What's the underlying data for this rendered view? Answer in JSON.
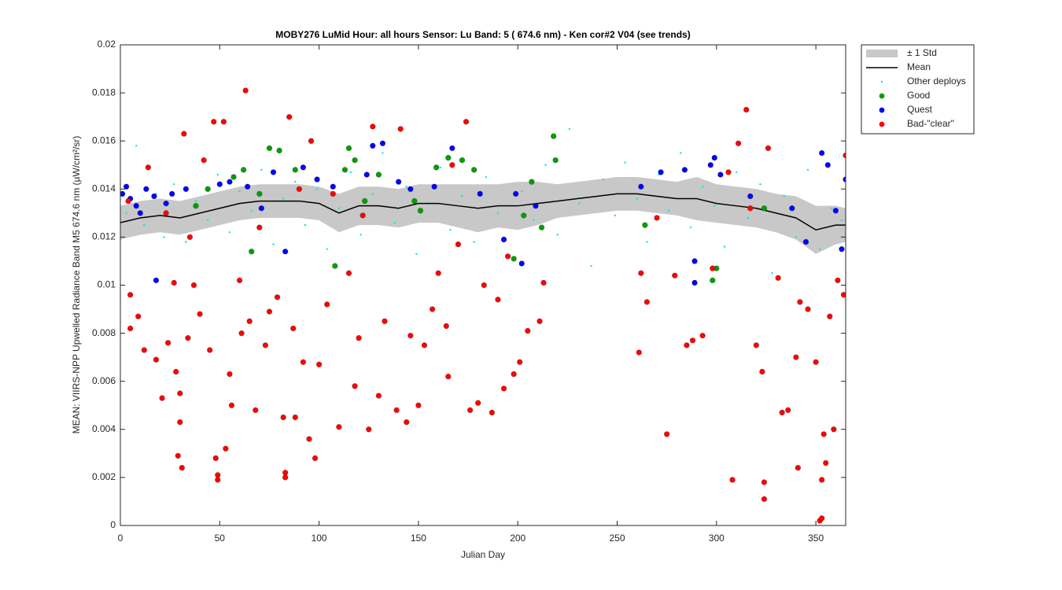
{
  "chart_data": {
    "type": "scatter",
    "title": "MOBY276   LuMid  Hour: all hours  Sensor: Lu Band: 5 ( 674.6 nm)  - Ken cor#2 V04 (see trends)",
    "x_label": "Julian Day",
    "y_label": "MEAN: VIIRS-NPP Upwelled Radiance Band M5 674.6 nm (µW/cm²/sr)",
    "xlim": [
      0,
      365
    ],
    "xticks": [
      0,
      50,
      100,
      150,
      200,
      250,
      300,
      350
    ],
    "ylim": [
      0,
      0.02
    ],
    "yticks": [
      0,
      0.002,
      0.004,
      0.006,
      0.008,
      0.01,
      0.012,
      0.014,
      0.016,
      0.018,
      0.02
    ],
    "legend": "outside-right",
    "series": [
      {
        "name": "± 1 Std",
        "marker": "band",
        "color": "#c8c8c8",
        "x": [
          0,
          10,
          20,
          30,
          40,
          50,
          60,
          70,
          80,
          90,
          100,
          110,
          120,
          130,
          140,
          150,
          160,
          170,
          180,
          190,
          200,
          210,
          220,
          230,
          240,
          250,
          260,
          270,
          280,
          290,
          300,
          310,
          320,
          330,
          340,
          350,
          360,
          365
        ],
        "lower": [
          0.0119,
          0.0121,
          0.0122,
          0.0121,
          0.0123,
          0.0125,
          0.0127,
          0.0128,
          0.0128,
          0.0128,
          0.0127,
          0.0122,
          0.0125,
          0.0125,
          0.0124,
          0.0126,
          0.0126,
          0.0124,
          0.0122,
          0.0124,
          0.0123,
          0.0125,
          0.0128,
          0.0129,
          0.013,
          0.0131,
          0.0131,
          0.013,
          0.0129,
          0.0127,
          0.0126,
          0.0125,
          0.0124,
          0.0122,
          0.0119,
          0.0113,
          0.0117,
          0.0118
        ],
        "upper": [
          0.0133,
          0.0135,
          0.0136,
          0.0135,
          0.0137,
          0.0139,
          0.0141,
          0.0142,
          0.0142,
          0.0142,
          0.0141,
          0.0138,
          0.0141,
          0.0141,
          0.014,
          0.0142,
          0.0142,
          0.0142,
          0.0142,
          0.0142,
          0.0143,
          0.0143,
          0.0142,
          0.0143,
          0.0144,
          0.0145,
          0.0145,
          0.0144,
          0.0143,
          0.0145,
          0.0142,
          0.0141,
          0.014,
          0.0138,
          0.0137,
          0.0133,
          0.0133,
          0.0132
        ]
      },
      {
        "name": "Mean",
        "marker": "line",
        "color": "#000000",
        "x": [
          0,
          10,
          20,
          30,
          40,
          50,
          60,
          70,
          80,
          90,
          100,
          110,
          120,
          130,
          140,
          150,
          160,
          170,
          180,
          190,
          200,
          210,
          220,
          230,
          240,
          250,
          260,
          270,
          280,
          290,
          300,
          310,
          320,
          330,
          340,
          350,
          360,
          365
        ],
        "y": [
          0.0126,
          0.0128,
          0.0129,
          0.0128,
          0.013,
          0.0132,
          0.0134,
          0.0135,
          0.0135,
          0.0135,
          0.0134,
          0.013,
          0.0133,
          0.0133,
          0.0132,
          0.0134,
          0.0134,
          0.0133,
          0.0132,
          0.0133,
          0.0133,
          0.0134,
          0.0135,
          0.0136,
          0.0137,
          0.0138,
          0.0138,
          0.0137,
          0.0136,
          0.0136,
          0.0134,
          0.0133,
          0.0132,
          0.013,
          0.0128,
          0.0123,
          0.0125,
          0.0125
        ]
      },
      {
        "name": "Other deploys",
        "marker": "dot",
        "color": "#00e5ee",
        "x": [
          3,
          8,
          12,
          18,
          22,
          27,
          33,
          38,
          44,
          49,
          55,
          60,
          66,
          71,
          77,
          82,
          88,
          93,
          99,
          104,
          110,
          116,
          121,
          127,
          132,
          138,
          144,
          149,
          155,
          161,
          166,
          172,
          178,
          184,
          190,
          196,
          202,
          208,
          214,
          220,
          226,
          231,
          237,
          243,
          249,
          254,
          260,
          265,
          271,
          276,
          282,
          287,
          293,
          299,
          304,
          310,
          316,
          322,
          328,
          334,
          340,
          346,
          352,
          358,
          363
        ],
        "y": [
          0.013,
          0.0158,
          0.0125,
          0.0138,
          0.012,
          0.0142,
          0.0118,
          0.0135,
          0.0127,
          0.0146,
          0.0122,
          0.0139,
          0.0131,
          0.0148,
          0.0117,
          0.0136,
          0.0143,
          0.0125,
          0.014,
          0.0115,
          0.0132,
          0.0147,
          0.0121,
          0.0138,
          0.0155,
          0.0126,
          0.0141,
          0.0113,
          0.0134,
          0.0149,
          0.0123,
          0.0137,
          0.0118,
          0.0145,
          0.013,
          0.0112,
          0.0139,
          0.0127,
          0.015,
          0.0121,
          0.0165,
          0.0134,
          0.0108,
          0.0144,
          0.0129,
          0.0151,
          0.0136,
          0.0118,
          0.0146,
          0.0131,
          0.0155,
          0.0124,
          0.0141,
          0.0133,
          0.0116,
          0.0147,
          0.0128,
          0.0142,
          0.0105,
          0.0137,
          0.012,
          0.0148,
          0.0115,
          0.0132,
          0.0127
        ]
      },
      {
        "name": "Good",
        "marker": "circle",
        "color": "#00a000",
        "x": [
          38,
          44,
          57,
          62,
          66,
          70,
          75,
          80,
          88,
          108,
          113,
          115,
          118,
          123,
          130,
          148,
          151,
          159,
          165,
          172,
          178,
          198,
          203,
          207,
          212,
          218,
          219,
          264,
          298,
          300,
          324
        ],
        "y": [
          0.0133,
          0.014,
          0.0145,
          0.0148,
          0.0114,
          0.0138,
          0.0157,
          0.0156,
          0.0148,
          0.0108,
          0.0148,
          0.0157,
          0.0152,
          0.0135,
          0.0146,
          0.0135,
          0.0131,
          0.0149,
          0.0153,
          0.0152,
          0.0148,
          0.0111,
          0.0129,
          0.0143,
          0.0124,
          0.0162,
          0.0152,
          0.0125,
          0.0102,
          0.0107,
          0.0132
        ]
      },
      {
        "name": "Quest",
        "marker": "circle",
        "color": "#0000ff",
        "x": [
          1,
          3,
          5,
          8,
          10,
          13,
          17,
          18,
          23,
          26,
          33,
          50,
          55,
          64,
          71,
          77,
          83,
          92,
          99,
          107,
          124,
          127,
          132,
          140,
          146,
          158,
          167,
          181,
          193,
          199,
          202,
          209,
          262,
          272,
          284,
          289,
          289,
          297,
          299,
          302,
          317,
          338,
          345,
          353,
          356,
          360,
          363,
          365
        ],
        "y": [
          0.0138,
          0.0141,
          0.0136,
          0.0133,
          0.013,
          0.014,
          0.0137,
          0.0102,
          0.0134,
          0.0138,
          0.014,
          0.0142,
          0.0143,
          0.0141,
          0.0132,
          0.0147,
          0.0114,
          0.0149,
          0.0144,
          0.0141,
          0.0146,
          0.0158,
          0.0159,
          0.0143,
          0.014,
          0.0141,
          0.0157,
          0.0138,
          0.0119,
          0.0138,
          0.0109,
          0.0133,
          0.0141,
          0.0147,
          0.0148,
          0.011,
          0.0101,
          0.015,
          0.0153,
          0.0146,
          0.0137,
          0.0132,
          0.0118,
          0.0155,
          0.015,
          0.0131,
          0.0115,
          0.0144
        ]
      },
      {
        "name": "Bad-\"clear\"",
        "marker": "circle",
        "color": "#ff0000",
        "x": [
          4,
          5,
          5,
          9,
          12,
          14,
          18,
          21,
          23,
          24,
          27,
          28,
          29,
          30,
          30,
          31,
          32,
          34,
          35,
          37,
          40,
          42,
          45,
          47,
          48,
          49,
          49,
          52,
          53,
          55,
          56,
          60,
          61,
          63,
          65,
          68,
          70,
          73,
          75,
          79,
          82,
          83,
          83,
          85,
          87,
          88,
          90,
          92,
          95,
          96,
          98,
          100,
          104,
          107,
          110,
          115,
          118,
          120,
          122,
          125,
          127,
          130,
          133,
          139,
          141,
          144,
          146,
          150,
          153,
          157,
          160,
          164,
          165,
          167,
          170,
          174,
          176,
          180,
          183,
          187,
          190,
          193,
          195,
          198,
          201,
          205,
          211,
          213,
          261,
          262,
          265,
          270,
          275,
          279,
          285,
          288,
          293,
          298,
          306,
          308,
          311,
          315,
          317,
          320,
          323,
          324,
          324,
          326,
          331,
          333,
          336,
          340,
          341,
          342,
          346,
          350,
          352,
          353,
          353,
          354,
          355,
          357,
          359,
          361,
          364,
          365
        ],
        "y": [
          0.0135,
          0.0082,
          0.0096,
          0.0087,
          0.0073,
          0.0149,
          0.0069,
          0.0053,
          0.013,
          0.0076,
          0.0101,
          0.0064,
          0.0029,
          0.0043,
          0.0055,
          0.0024,
          0.0163,
          0.0078,
          0.012,
          0.01,
          0.0088,
          0.0152,
          0.0073,
          0.0168,
          0.0028,
          0.0021,
          0.0019,
          0.0168,
          0.0032,
          0.0063,
          0.005,
          0.0102,
          0.008,
          0.0181,
          0.0085,
          0.0048,
          0.0124,
          0.0075,
          0.0089,
          0.0095,
          0.0045,
          0.0022,
          0.002,
          0.017,
          0.0082,
          0.0045,
          0.014,
          0.0068,
          0.0036,
          0.016,
          0.0028,
          0.0067,
          0.0092,
          0.0138,
          0.0041,
          0.0105,
          0.0058,
          0.0078,
          0.0129,
          0.004,
          0.0166,
          0.0054,
          0.0085,
          0.0048,
          0.0165,
          0.0043,
          0.0079,
          0.005,
          0.0075,
          0.009,
          0.0105,
          0.0083,
          0.0062,
          0.015,
          0.0117,
          0.0168,
          0.0048,
          0.0051,
          0.01,
          0.0047,
          0.0094,
          0.0057,
          0.0112,
          0.0063,
          0.0068,
          0.0081,
          0.0085,
          0.0101,
          0.0072,
          0.0105,
          0.0093,
          0.0128,
          0.0038,
          0.0104,
          0.0075,
          0.0077,
          0.0079,
          0.0107,
          0.0147,
          0.0019,
          0.0159,
          0.0173,
          0.0132,
          0.0075,
          0.0064,
          0.0018,
          0.0011,
          0.0157,
          0.0103,
          0.0047,
          0.0048,
          0.007,
          0.0024,
          0.0093,
          0.009,
          0.0068,
          0.0002,
          0.0003,
          0.0019,
          0.0038,
          0.0026,
          0.0087,
          0.004,
          0.0102,
          0.0096,
          0.0154
        ]
      }
    ]
  }
}
